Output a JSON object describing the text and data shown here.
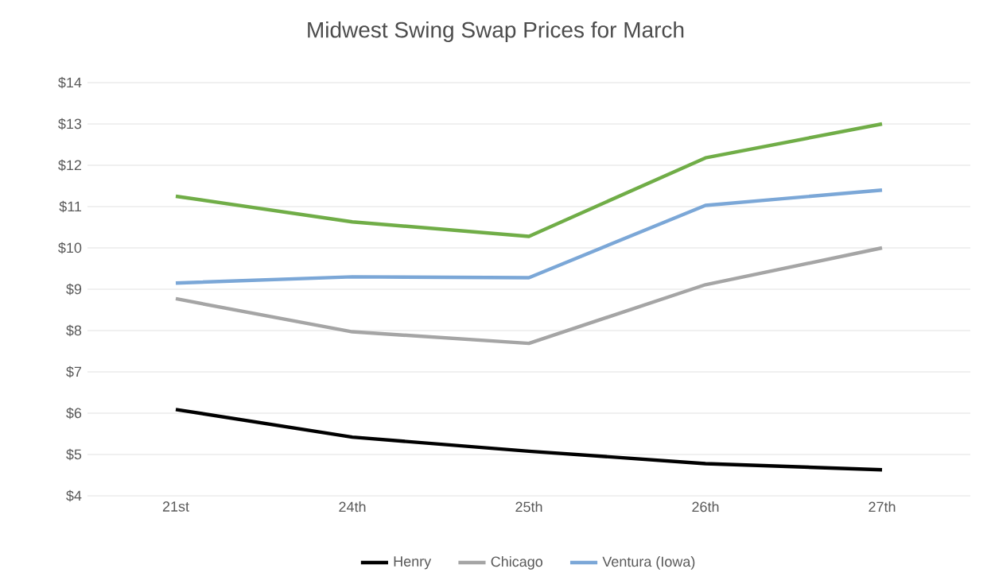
{
  "chart_data": {
    "type": "line",
    "title": "Midwest Swing Swap Prices for March",
    "categories": [
      "21st",
      "24th",
      "25th",
      "26th",
      "27th"
    ],
    "series": [
      {
        "name": "Henry",
        "color": "#000000",
        "values": [
          6.09,
          5.42,
          5.08,
          4.78,
          4.63
        ]
      },
      {
        "name": "Chicago",
        "color": "#a5a5a5",
        "values": [
          8.77,
          7.97,
          7.69,
          9.11,
          10.0
        ]
      },
      {
        "color": "#70ad47",
        "values": [
          11.25,
          10.63,
          10.28,
          12.18,
          13.0
        ]
      },
      {
        "name": "Ventura (Iowa)",
        "color": "#7ba7d7",
        "values": [
          9.15,
          9.3,
          9.28,
          11.03,
          11.4
        ]
      }
    ],
    "ylim": [
      4,
      14
    ],
    "yticks": [
      {
        "value": 4,
        "label": "$4"
      },
      {
        "value": 5,
        "label": "$5"
      },
      {
        "value": 6,
        "label": "$6"
      },
      {
        "value": 7,
        "label": "$7"
      },
      {
        "value": 8,
        "label": "$8"
      },
      {
        "value": 9,
        "label": "$9"
      },
      {
        "value": 10,
        "label": "$10"
      },
      {
        "value": 11,
        "label": "$11"
      },
      {
        "value": 12,
        "label": "$12"
      },
      {
        "value": 13,
        "label": "$13"
      },
      {
        "value": 14,
        "label": "$14"
      }
    ],
    "grid": "y",
    "legend": "bottom",
    "marker": "none",
    "line_style": "solid"
  }
}
